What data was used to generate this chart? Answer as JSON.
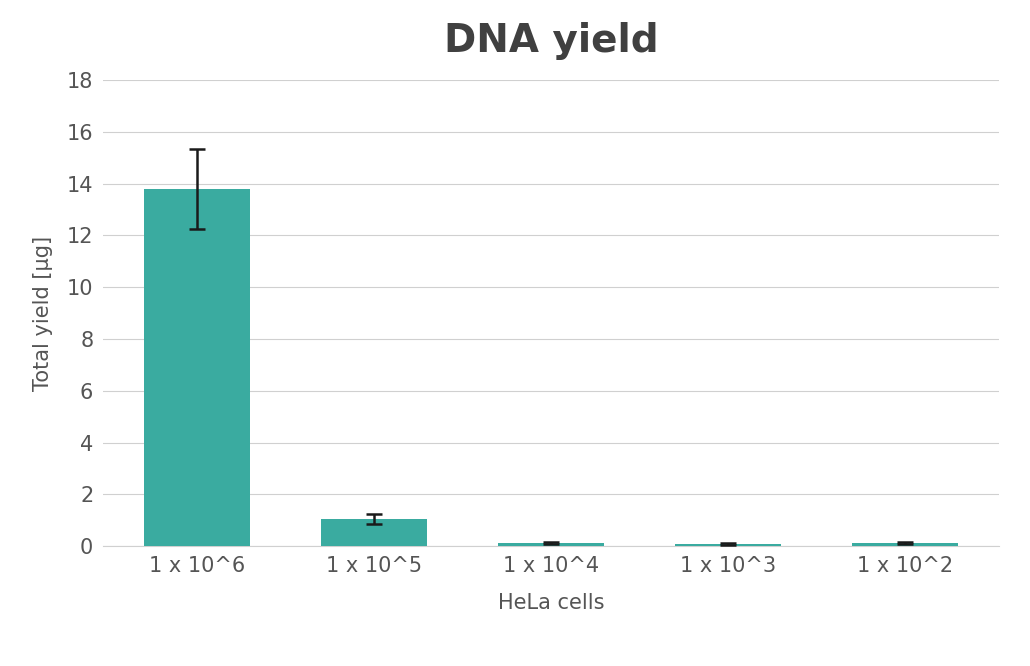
{
  "title": "DNA yield",
  "xlabel": "HeLa cells",
  "ylabel": "Total yield [µg]",
  "categories": [
    "1 x 10^6",
    "1 x 10^5",
    "1 x 10^4",
    "1 x 10^3",
    "1 x 10^2"
  ],
  "values": [
    13.8,
    1.05,
    0.12,
    0.07,
    0.13
  ],
  "errors": [
    1.55,
    0.18,
    0.05,
    0.04,
    0.04
  ],
  "bar_color": "#3aaba0",
  "error_color": "#1a1a1a",
  "ylim": [
    0,
    18
  ],
  "yticks": [
    0,
    2,
    4,
    6,
    8,
    10,
    12,
    14,
    16,
    18
  ],
  "background_color": "#ffffff",
  "plot_background": "#ffffff",
  "title_fontsize": 28,
  "label_fontsize": 15,
  "tick_fontsize": 15,
  "bar_width": 0.6,
  "grid_color": "#d0d0d0",
  "title_color": "#404040",
  "axis_label_color": "#555555"
}
